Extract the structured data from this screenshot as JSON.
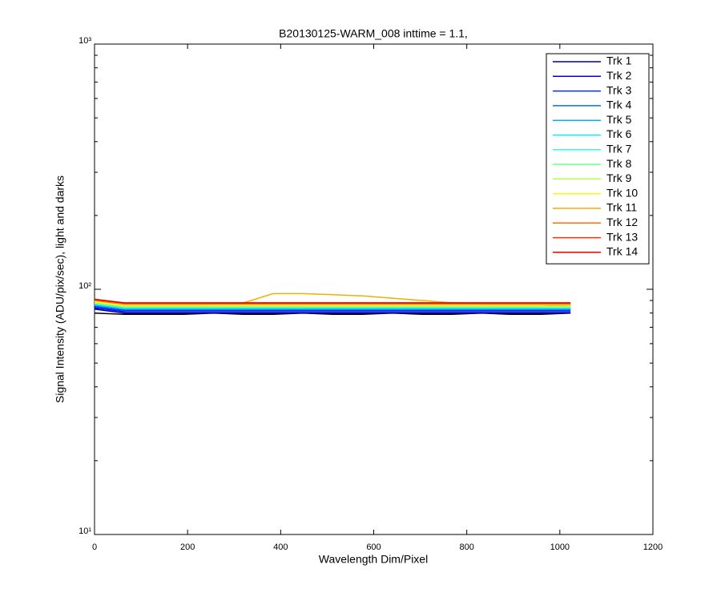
{
  "chart_data": {
    "type": "line",
    "title": "B20130125-WARM_008 inttime = 1.1,",
    "x_label": "Wavelength Dim/Pixel",
    "y_label": "Signal Intensity (ADU/pix/sec), light and darks",
    "log_y": true,
    "legend": "northeast",
    "xlim": [
      0,
      1200
    ],
    "xticks": [
      0,
      200,
      400,
      600,
      800,
      1000,
      1200
    ],
    "ylim": [
      10,
      1000
    ],
    "yticks": [
      {
        "value": 10,
        "label": "10¹"
      },
      {
        "value": 100,
        "label": "10²"
      },
      {
        "value": 1000,
        "label": "10³"
      }
    ],
    "yminor": [
      20,
      30,
      40,
      50,
      60,
      70,
      80,
      90,
      200,
      300,
      400,
      500,
      600,
      700,
      800,
      900
    ],
    "x": [
      0,
      64,
      128,
      192,
      256,
      320,
      384,
      448,
      512,
      576,
      640,
      704,
      768,
      832,
      896,
      960,
      1023
    ],
    "series": [
      {
        "color": "#000000",
        "values": [
          80,
          79,
          79,
          79,
          80,
          79,
          79,
          80,
          79,
          79,
          80,
          79,
          79,
          80,
          79,
          79,
          80
        ]
      },
      {
        "color": "#000000",
        "values": [
          86,
          85,
          85,
          85,
          85,
          85,
          85,
          85,
          85,
          85,
          85,
          85,
          85,
          85,
          85,
          85,
          86
        ]
      },
      {
        "name": "Trk 1",
        "color": "#00008f",
        "values": [
          83,
          80,
          80,
          80,
          80,
          80,
          80,
          80,
          80,
          80,
          80,
          80,
          80,
          80,
          80,
          80,
          80
        ]
      },
      {
        "name": "Trk 2",
        "color": "#0000df",
        "values": [
          84,
          81,
          81,
          81,
          81,
          81,
          81,
          81,
          81,
          81,
          81,
          81,
          81,
          81,
          81,
          81,
          81
        ]
      },
      {
        "name": "Trk 3",
        "color": "#0030ff",
        "values": [
          85,
          82,
          82,
          82,
          82,
          82,
          82,
          82,
          82,
          82,
          82,
          82,
          82,
          82,
          82,
          82,
          82
        ]
      },
      {
        "name": "Trk 4",
        "color": "#0070ff",
        "values": [
          86,
          83,
          83,
          83,
          83,
          83,
          83,
          83,
          83,
          83,
          83,
          83,
          83,
          83,
          83,
          83,
          83
        ]
      },
      {
        "name": "Trk 5",
        "color": "#00b0ff",
        "values": [
          86,
          83,
          83,
          83,
          83,
          83,
          83,
          83,
          83,
          83,
          83,
          83,
          83,
          83,
          83,
          83,
          83
        ]
      },
      {
        "name": "Trk 6",
        "color": "#00f0ff",
        "values": [
          87,
          84,
          84,
          84,
          84,
          84,
          84,
          84,
          84,
          84,
          84,
          84,
          84,
          84,
          84,
          84,
          84
        ]
      },
      {
        "name": "Trk 7",
        "color": "#30ffcf",
        "values": [
          87,
          84,
          84,
          84,
          84,
          84,
          84,
          84,
          84,
          84,
          84,
          84,
          84,
          84,
          84,
          84,
          84
        ]
      },
      {
        "name": "Trk 8",
        "color": "#70ff8f",
        "values": [
          88,
          85,
          85,
          85,
          85,
          85,
          85,
          85,
          85,
          85,
          85,
          85,
          85,
          85,
          85,
          85,
          85
        ]
      },
      {
        "name": "Trk 9",
        "color": "#b0ff4f",
        "values": [
          88,
          85,
          85,
          85,
          85,
          85,
          85,
          85,
          85,
          85,
          85,
          85,
          85,
          85,
          85,
          85,
          85
        ]
      },
      {
        "name": "Trk 10",
        "color": "#f0ff10",
        "values": [
          89,
          86,
          86,
          86,
          86,
          86,
          86,
          86,
          86,
          86,
          86,
          86,
          86,
          86,
          86,
          86,
          86
        ]
      },
      {
        "name": "Trk 11",
        "color": "#f0b000",
        "values": [
          90,
          87,
          87,
          87,
          87,
          88,
          96,
          96,
          95,
          94,
          92,
          90,
          88,
          87,
          87,
          87,
          87
        ]
      },
      {
        "name": "Trk 12",
        "color": "#ff7000",
        "values": [
          90,
          87,
          87,
          87,
          87,
          87,
          87,
          87,
          87,
          87,
          87,
          87,
          87,
          87,
          87,
          87,
          87
        ]
      },
      {
        "name": "Trk 13",
        "color": "#ff3000",
        "values": [
          91,
          88,
          88,
          88,
          88,
          88,
          88,
          88,
          88,
          88,
          88,
          88,
          88,
          88,
          88,
          88,
          88
        ]
      },
      {
        "name": "Trk 14",
        "color": "#df0000",
        "values": [
          91,
          88,
          88,
          88,
          88,
          88,
          88,
          88,
          88,
          88,
          88,
          88,
          88,
          88,
          88,
          88,
          88
        ]
      }
    ]
  }
}
